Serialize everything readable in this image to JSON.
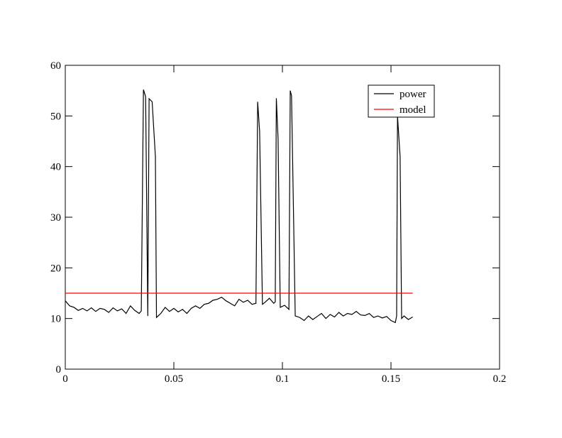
{
  "chart_data": {
    "type": "line",
    "xlim": [
      0,
      0.2
    ],
    "xticks": [
      0,
      0.05,
      0.1,
      0.15,
      0.2
    ],
    "ylim": [
      0,
      60
    ],
    "yticks": [
      0,
      10,
      20,
      30,
      40,
      50,
      60
    ],
    "legend": "upper right",
    "series": [
      {
        "name": "power",
        "color": "#000000",
        "x": [
          0,
          0.002,
          0.004,
          0.006,
          0.008,
          0.01,
          0.012,
          0.014,
          0.016,
          0.018,
          0.02,
          0.022,
          0.024,
          0.026,
          0.028,
          0.03,
          0.032,
          0.034,
          0.035,
          0.036,
          0.037,
          0.038,
          0.0386,
          0.04,
          0.0415,
          0.042,
          0.044,
          0.046,
          0.048,
          0.05,
          0.052,
          0.054,
          0.056,
          0.058,
          0.06,
          0.062,
          0.064,
          0.066,
          0.068,
          0.07,
          0.072,
          0.074,
          0.076,
          0.078,
          0.08,
          0.082,
          0.084,
          0.086,
          0.0878,
          0.0886,
          0.0895,
          0.0908,
          0.092,
          0.094,
          0.096,
          0.0967,
          0.0972,
          0.098,
          0.099,
          0.101,
          0.103,
          0.1036,
          0.1042,
          0.1059,
          0.108,
          0.11,
          0.112,
          0.114,
          0.116,
          0.118,
          0.12,
          0.122,
          0.124,
          0.126,
          0.128,
          0.13,
          0.132,
          0.134,
          0.136,
          0.138,
          0.14,
          0.142,
          0.144,
          0.146,
          0.148,
          0.15,
          0.152,
          0.1526,
          0.153,
          0.1542,
          0.1549,
          0.156,
          0.158,
          0.16
        ],
        "values": [
          13.5,
          12.5,
          12.2,
          11.6,
          12.0,
          11.5,
          12.1,
          11.4,
          12.0,
          11.8,
          11.2,
          12.1,
          11.5,
          11.9,
          11.0,
          12.5,
          11.6,
          11.0,
          11.5,
          55.2,
          53.8,
          10.5,
          53.4,
          52.8,
          42,
          10.2,
          11.0,
          12.2,
          11.4,
          12.0,
          11.3,
          11.8,
          11.0,
          12.0,
          12.5,
          12.0,
          12.8,
          13.0,
          13.6,
          13.8,
          14.2,
          13.5,
          13.0,
          12.5,
          13.8,
          13.2,
          13.6,
          12.8,
          13.0,
          52.8,
          47,
          12.8,
          13.2,
          14.0,
          13.0,
          13.3,
          53.5,
          45.5,
          12.2,
          12.6,
          11.8,
          55.0,
          54.0,
          10.5,
          10.2,
          9.6,
          10.5,
          9.8,
          10.4,
          11.0,
          10.0,
          10.8,
          10.3,
          11.2,
          10.5,
          11.0,
          10.8,
          11.4,
          10.7,
          10.6,
          11.0,
          10.2,
          10.5,
          10.1,
          10.4,
          9.6,
          9.2,
          10.5,
          50.0,
          42.0,
          10.0,
          10.5,
          9.8,
          10.3
        ]
      },
      {
        "name": "model",
        "color": "#ff0000",
        "x": [
          0,
          0.16
        ],
        "values": [
          15,
          15
        ]
      }
    ]
  }
}
